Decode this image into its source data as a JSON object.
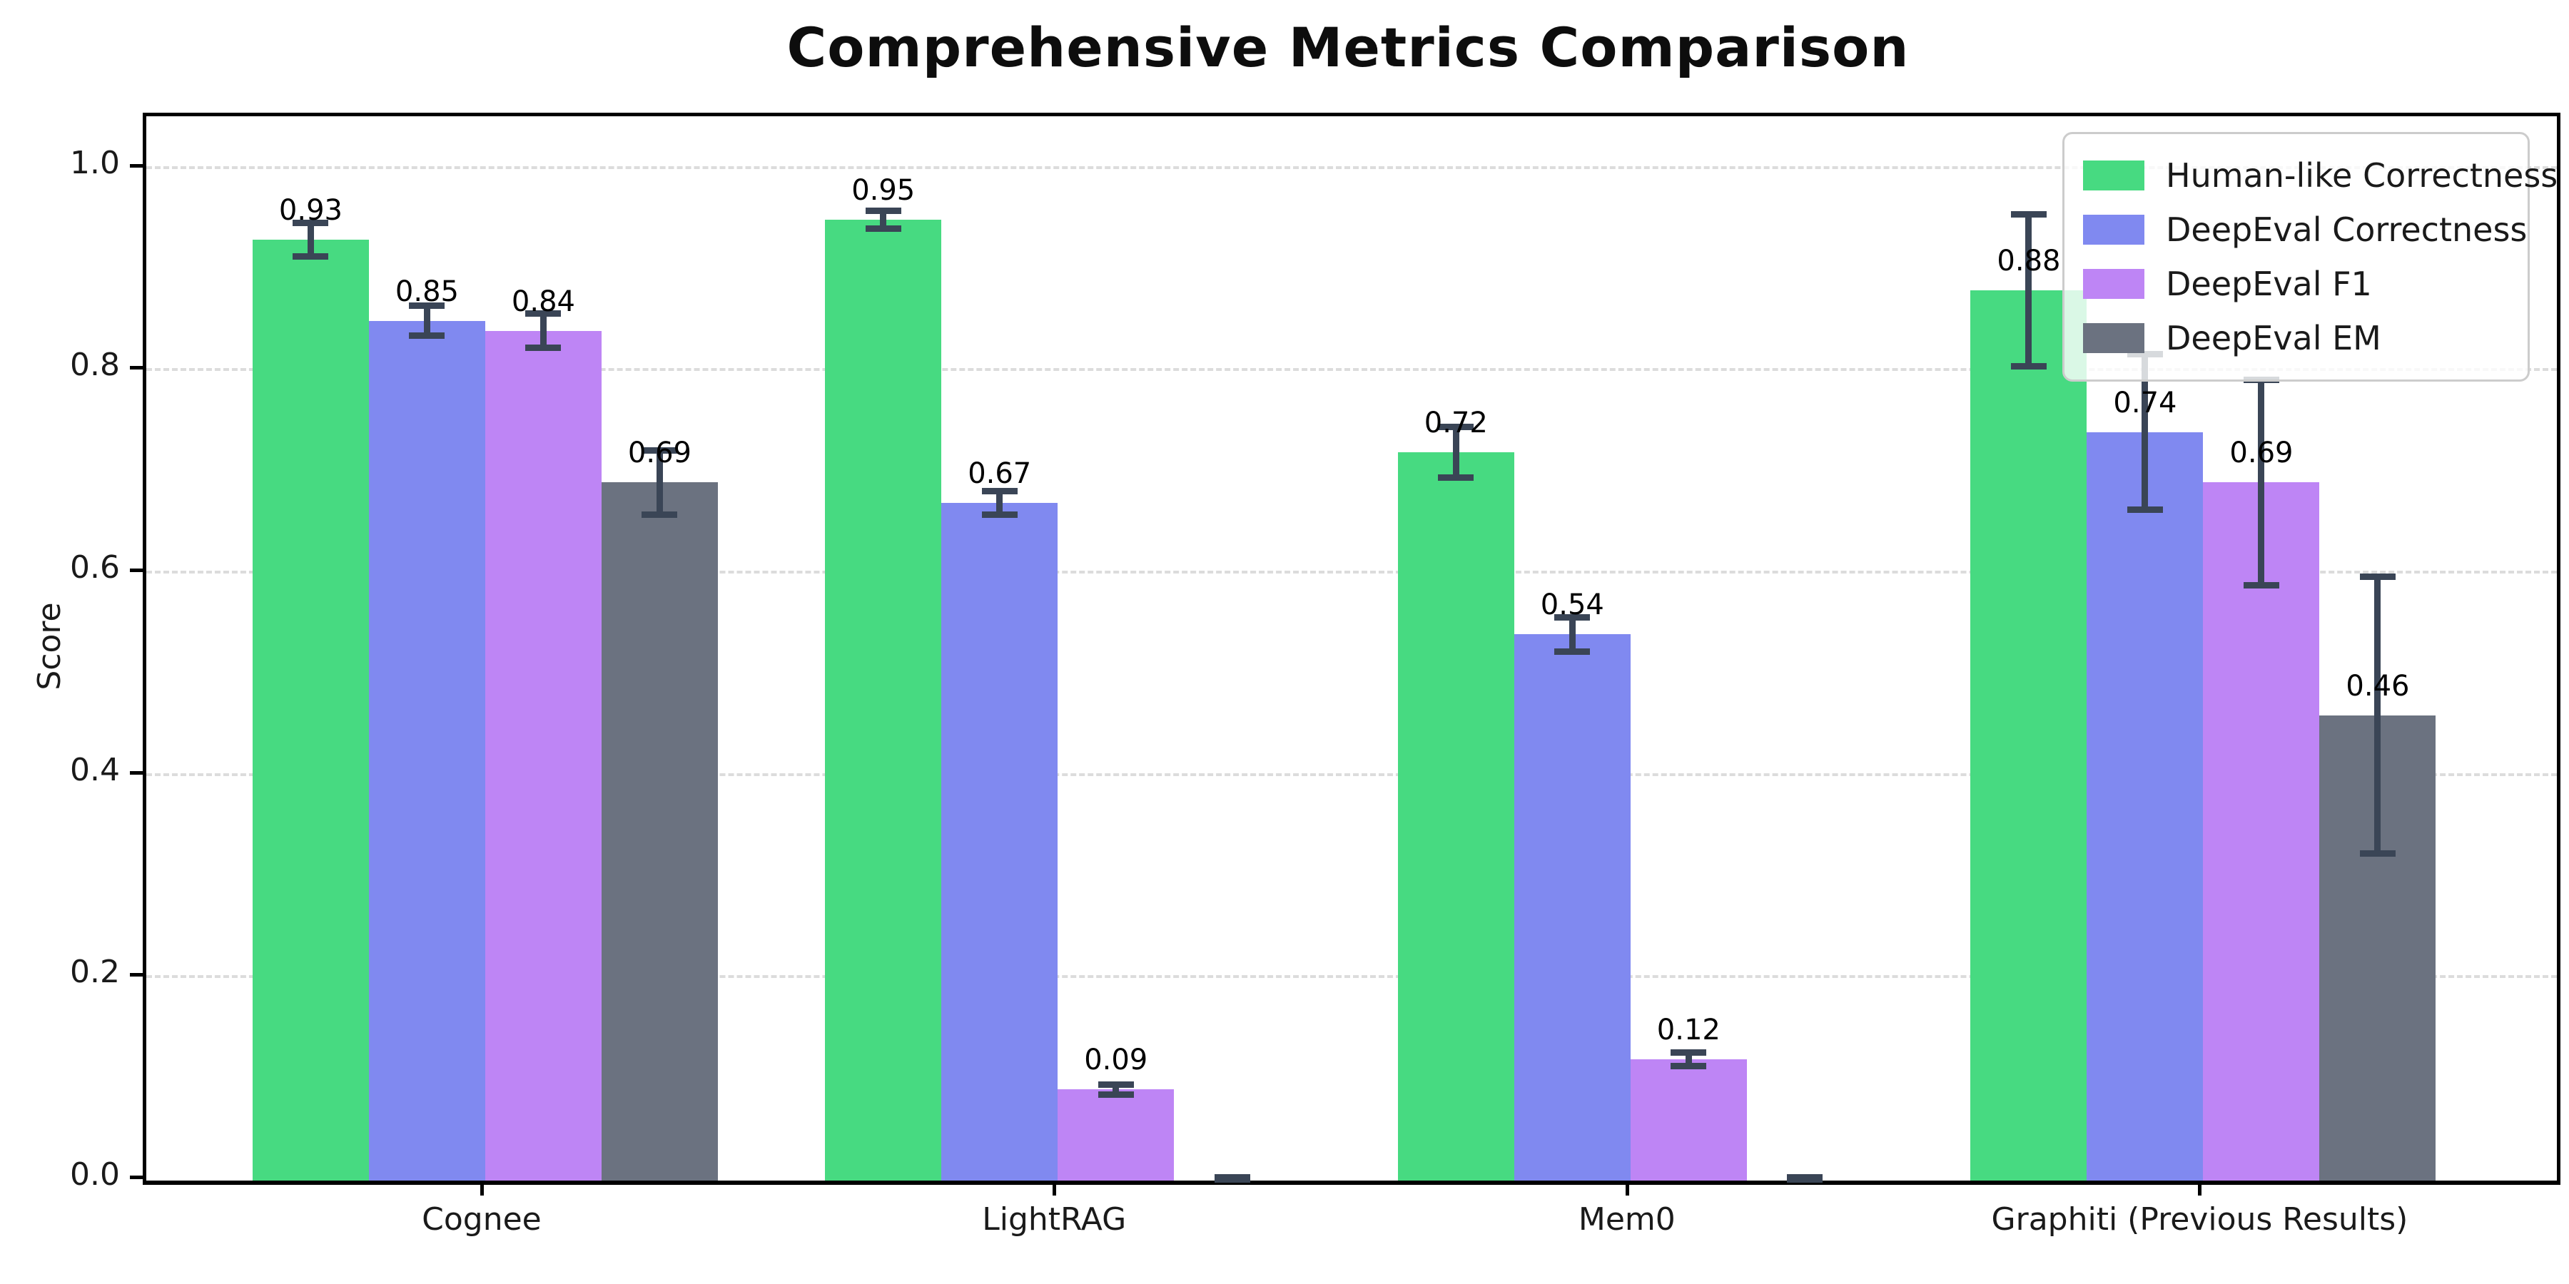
{
  "title": "Comprehensive Metrics Comparison",
  "ylabel": "Score",
  "chart_data": {
    "type": "bar",
    "categories": [
      "Cognee",
      "LightRAG",
      "Mem0",
      "Graphiti (Previous Results)"
    ],
    "series": [
      {
        "name": "Human-like Correctness",
        "color": "#47da81",
        "values": [
          0.93,
          0.95,
          0.72,
          0.88
        ],
        "errors": [
          0.02,
          0.012,
          0.028,
          0.078
        ],
        "labels": [
          "0.93",
          "0.95",
          "0.72",
          "0.88"
        ]
      },
      {
        "name": "DeepEval Correctness",
        "color": "#8089f0",
        "values": [
          0.85,
          0.67,
          0.54,
          0.74
        ],
        "errors": [
          0.018,
          0.015,
          0.02,
          0.08
        ],
        "labels": [
          "0.85",
          "0.67",
          "0.54",
          "0.74"
        ]
      },
      {
        "name": "DeepEval F1",
        "color": "#be85f5",
        "values": [
          0.84,
          0.09,
          0.12,
          0.69
        ],
        "errors": [
          0.02,
          0.008,
          0.01,
          0.105
        ],
        "labels": [
          "0.84",
          "0.09",
          "0.12",
          "0.69"
        ]
      },
      {
        "name": "DeepEval EM",
        "color": "#6b7280",
        "values": [
          0.69,
          0.0,
          0.0,
          0.46
        ],
        "errors": [
          0.035,
          0.004,
          0.004,
          0.14
        ],
        "labels": [
          "0.69",
          "",
          "",
          "0.46"
        ]
      }
    ],
    "ylim": [
      0,
      1.052
    ],
    "yticks": [
      0.0,
      0.2,
      0.4,
      0.6,
      0.8,
      1.0
    ],
    "ytick_labels": [
      "0.0",
      "0.2",
      "0.4",
      "0.6",
      "0.8",
      "1.0"
    ],
    "grid": true,
    "grid_style": "dashed",
    "legend_position": "upper right",
    "errorbar_color": "#3a4556",
    "axis_color": "#000000"
  }
}
